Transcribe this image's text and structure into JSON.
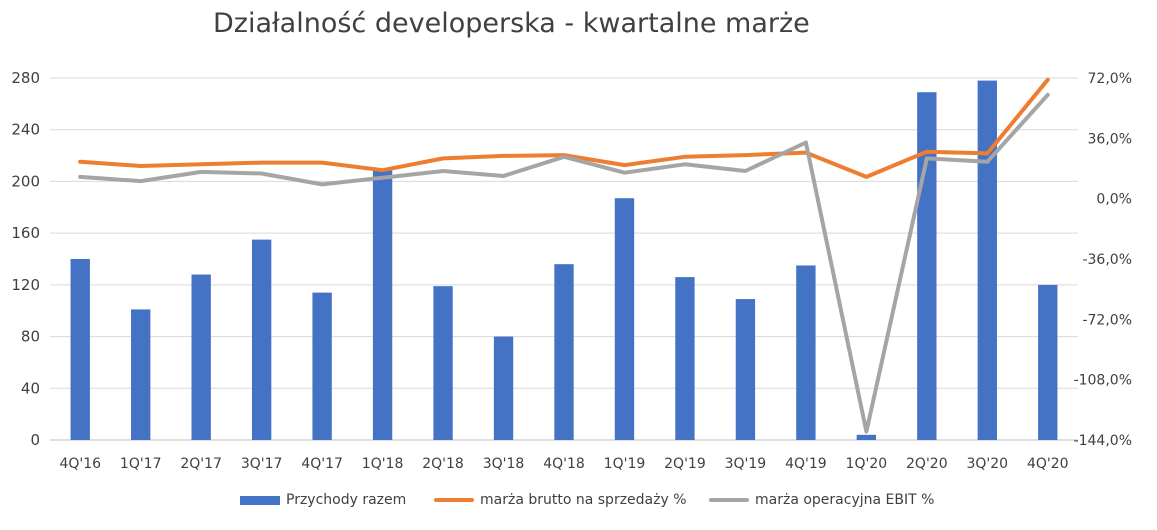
{
  "chart_data": {
    "type": "bar",
    "title": "Działalność developerska - kwartalne marże",
    "categories": [
      "4Q'16",
      "1Q'17",
      "2Q'17",
      "3Q'17",
      "4Q'17",
      "1Q'18",
      "2Q'18",
      "3Q'18",
      "4Q'18",
      "1Q'19",
      "2Q'19",
      "3Q'19",
      "4Q'19",
      "1Q'20",
      "2Q'20",
      "3Q'20",
      "4Q'20"
    ],
    "left_axis": {
      "ylim": [
        0,
        280
      ],
      "ticks": [
        "0",
        "40",
        "80",
        "120",
        "160",
        "200",
        "240",
        "280"
      ],
      "tick_values": [
        0,
        40,
        80,
        120,
        160,
        200,
        240,
        280
      ]
    },
    "right_axis": {
      "ylim": [
        -144,
        72
      ],
      "ticks": [
        "-144,0%",
        "-108,0%",
        "-72,0%",
        "-36,0%",
        "0,0%",
        "36,0%",
        "72,0%"
      ],
      "tick_values": [
        -144,
        -108,
        -72,
        -36,
        0,
        36,
        72
      ]
    },
    "grid": true,
    "legend_position": "bottom",
    "series": [
      {
        "name": "Przychody razem",
        "kind": "bar",
        "axis": "left",
        "color": "#4472C4",
        "values": [
          140,
          101,
          128,
          155,
          114,
          209,
          119,
          80,
          136,
          187,
          126,
          109,
          135,
          4,
          269,
          278,
          120
        ]
      },
      {
        "name": "marża brutto na sprzedaży %",
        "kind": "line",
        "axis": "right",
        "color": "#ED7D31",
        "values": [
          22,
          19.5,
          20.5,
          21.5,
          21.5,
          17,
          24,
          25.5,
          26,
          20,
          25,
          26,
          27.5,
          13,
          28,
          27,
          71
        ]
      },
      {
        "name": "marża operacyjna EBIT %",
        "kind": "line",
        "axis": "right",
        "color": "#A5A5A5",
        "values": [
          13,
          10.5,
          16,
          15,
          8.5,
          12.5,
          16.5,
          13.5,
          25,
          15.5,
          20.5,
          16.5,
          33.5,
          -139,
          24,
          22,
          62
        ]
      }
    ]
  }
}
